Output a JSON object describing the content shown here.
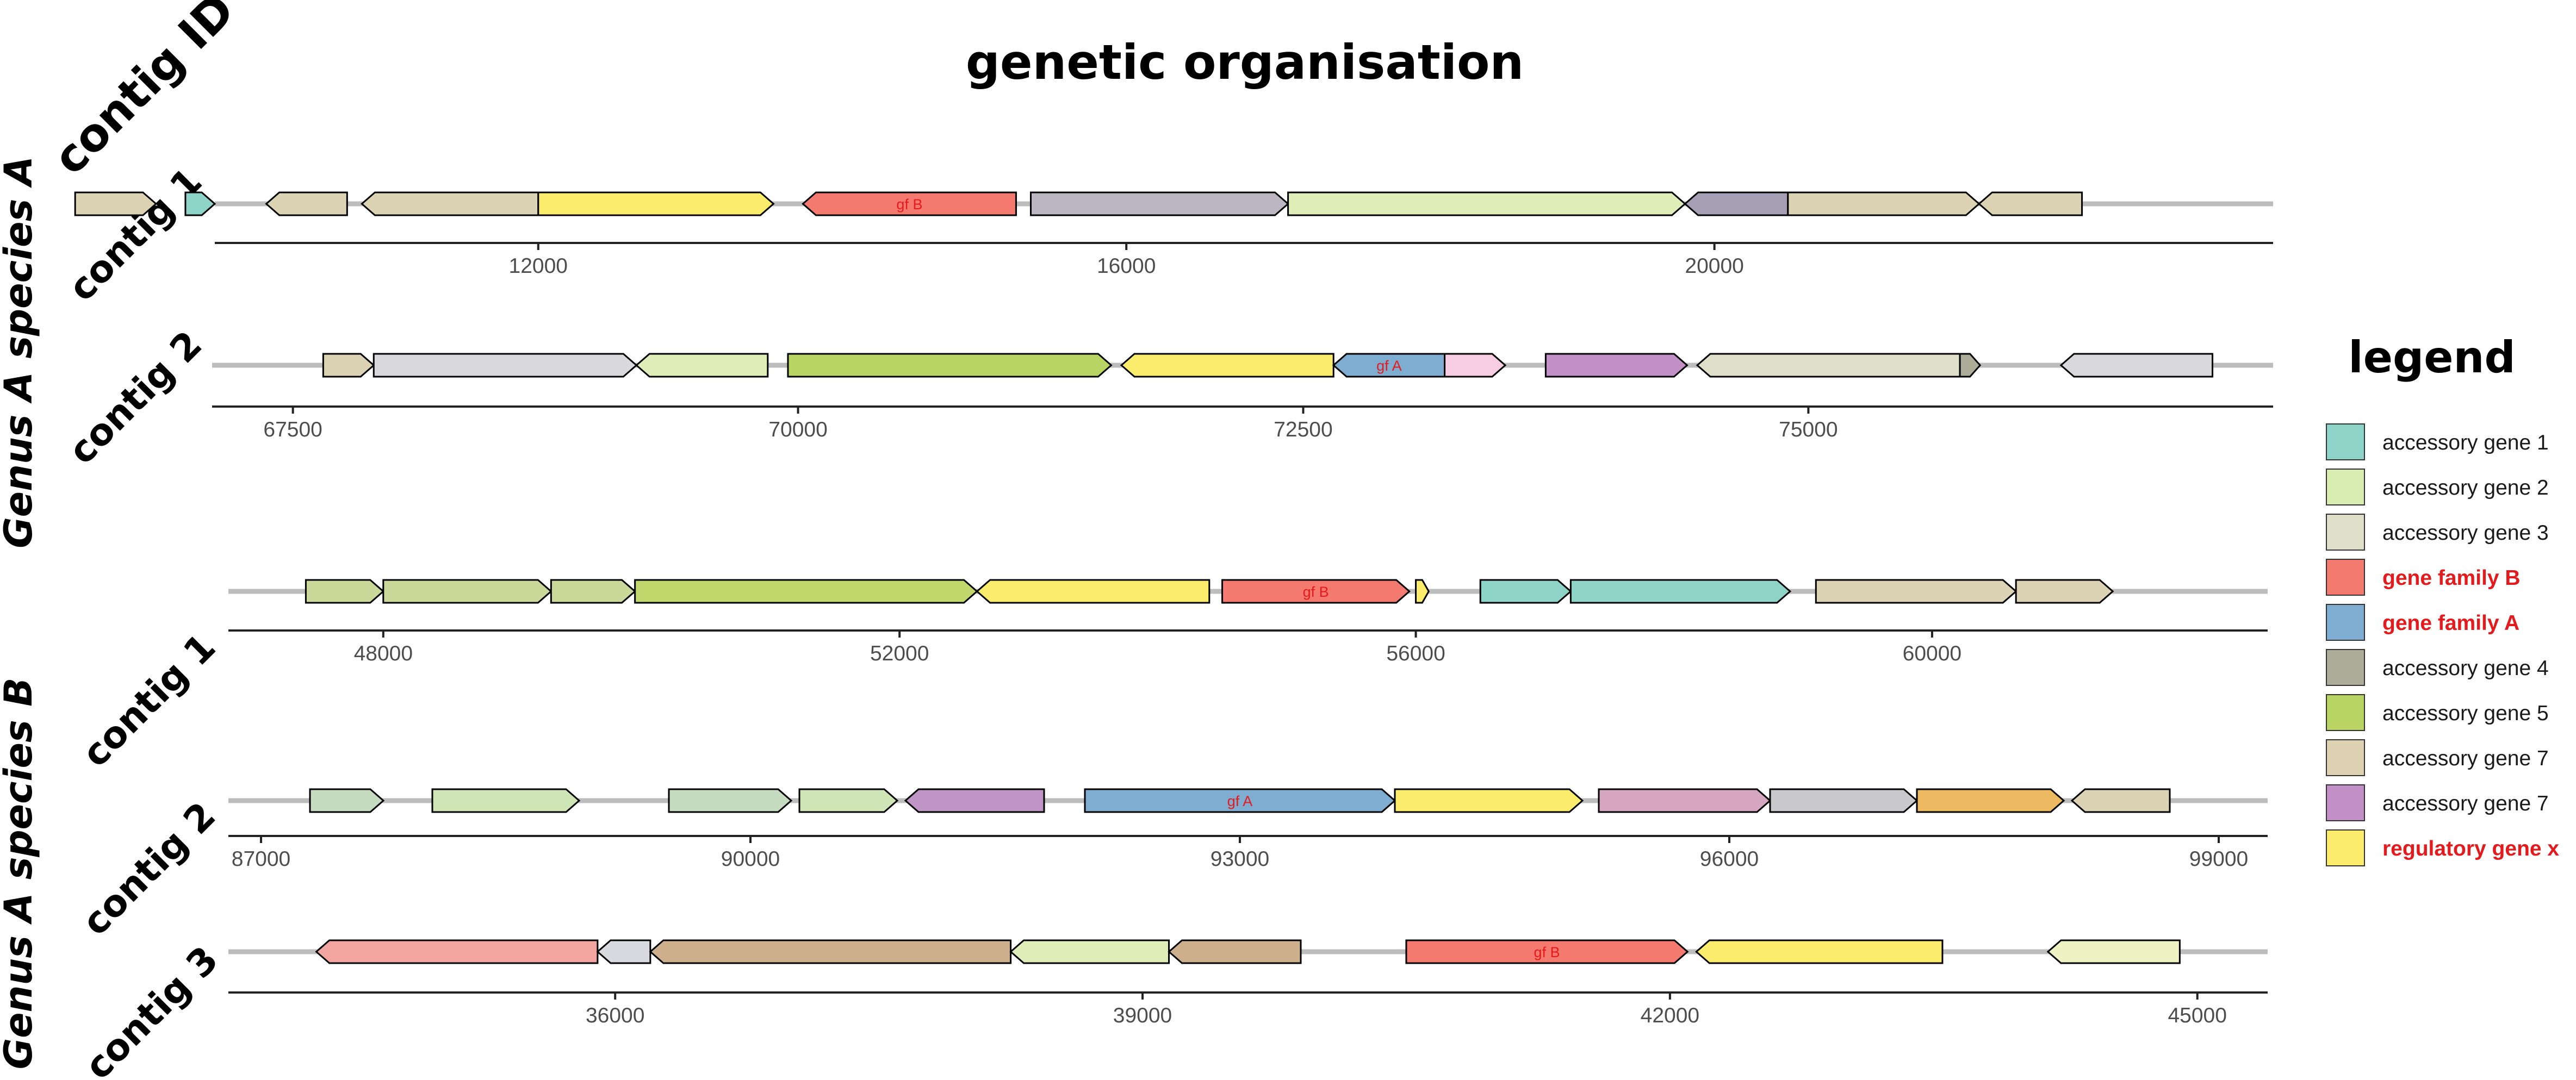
{
  "title": "genetic organisation",
  "y_axis_title": "contig ID",
  "legend": {
    "title": "legend",
    "items": [
      {
        "label": "accessory gene 1",
        "color": "#8dd3c7",
        "highlight": false
      },
      {
        "label": "accessory gene 2",
        "color": "#d9edb2",
        "highlight": false
      },
      {
        "label": "accessory gene 3",
        "color": "#dedfc8",
        "highlight": false
      },
      {
        "label": "gene family B",
        "color": "#f47a70",
        "highlight": true
      },
      {
        "label": "gene family A",
        "color": "#7fadd2",
        "highlight": true
      },
      {
        "label": "accessory gene 4",
        "color": "#acad98",
        "highlight": false
      },
      {
        "label": "accessory gene 5",
        "color": "#b8d563",
        "highlight": false
      },
      {
        "label": "accessory gene 7",
        "color": "#ded2b3",
        "highlight": false
      },
      {
        "label": "accessory gene 7",
        "color": "#c28fc6",
        "highlight": false
      },
      {
        "label": "regulatory gene x",
        "color": "#fbec6b",
        "highlight": true
      }
    ]
  },
  "chart_data": {
    "type": "gene-map",
    "groups": [
      {
        "name": "Genus A species A",
        "contigs": [
          {
            "id": "contig 1",
            "xlim": [
              9800,
              23800
            ],
            "ticks": [
              12000,
              16000,
              20000
            ],
            "genes": [
              {
                "start": 8850,
                "end": 9400,
                "strand": 1,
                "color": "#dcd3b5"
              },
              {
                "start": 9600,
                "end": 9800,
                "strand": 1,
                "color": "#8dd3c7"
              },
              {
                "start": 10150,
                "end": 10700,
                "strand": -1,
                "color": "#dcd3b5"
              },
              {
                "start": 10800,
                "end": 12000,
                "strand": -1,
                "color": "#dcd3b5"
              },
              {
                "start": 12000,
                "end": 13600,
                "strand": 1,
                "color": "#fbec6b"
              },
              {
                "start": 13800,
                "end": 15250,
                "strand": -1,
                "color": "#f47a70",
                "label": "gf B"
              },
              {
                "start": 15350,
                "end": 17100,
                "strand": 1,
                "color": "#bcb6c2"
              },
              {
                "start": 17100,
                "end": 19800,
                "strand": 1,
                "color": "#dfedb8"
              },
              {
                "start": 19800,
                "end": 20500,
                "strand": -1,
                "color": "#a59fb4"
              },
              {
                "start": 20500,
                "end": 21800,
                "strand": 1,
                "color": "#dcd3b5"
              },
              {
                "start": 21800,
                "end": 22500,
                "strand": -1,
                "color": "#dcd3b5"
              }
            ]
          },
          {
            "id": "contig 2",
            "xlim": [
              67100,
              77300
            ],
            "ticks": [
              67500,
              70000,
              72500,
              75000
            ],
            "genes": [
              {
                "start": 67650,
                "end": 67900,
                "strand": 1,
                "color": "#dcd3b5"
              },
              {
                "start": 67900,
                "end": 69200,
                "strand": 1,
                "color": "#d9d9db"
              },
              {
                "start": 69200,
                "end": 69850,
                "strand": -1,
                "color": "#dfedb8"
              },
              {
                "start": 69950,
                "end": 71550,
                "strand": 1,
                "color": "#b8d563"
              },
              {
                "start": 71600,
                "end": 72650,
                "strand": -1,
                "color": "#fbec6b"
              },
              {
                "start": 72650,
                "end": 73200,
                "strand": -1,
                "color": "#7fadd2",
                "label": "gf A"
              },
              {
                "start": 73200,
                "end": 73500,
                "strand": 1,
                "color": "#f6cde1"
              },
              {
                "start": 73700,
                "end": 74400,
                "strand": 1,
                "color": "#c28fc6"
              },
              {
                "start": 74450,
                "end": 75750,
                "strand": -1,
                "color": "#dedfc8"
              },
              {
                "start": 75750,
                "end": 75850,
                "strand": 1,
                "color": "#acad98"
              },
              {
                "start": 76250,
                "end": 77000,
                "strand": -1,
                "color": "#d9d9db"
              }
            ]
          }
        ]
      },
      {
        "name": "Genus A species B",
        "contigs": [
          {
            "id": "contig 1",
            "xlim": [
              46800,
              62600
            ],
            "ticks": [
              48000,
              52000,
              56000,
              60000
            ],
            "genes": [
              {
                "start": 47400,
                "end": 48000,
                "strand": 1,
                "color": "#ccd79a"
              },
              {
                "start": 48000,
                "end": 49300,
                "strand": 1,
                "color": "#ccd79a"
              },
              {
                "start": 49300,
                "end": 49950,
                "strand": 1,
                "color": "#ccd79a"
              },
              {
                "start": 49950,
                "end": 52600,
                "strand": 1,
                "color": "#c1d76b"
              },
              {
                "start": 52600,
                "end": 54400,
                "strand": -1,
                "color": "#fbec6b"
              },
              {
                "start": 54500,
                "end": 55950,
                "strand": 1,
                "color": "#f47a70",
                "label": "gf B"
              },
              {
                "start": 56000,
                "end": 56100,
                "strand": 1,
                "color": "#fbec6b"
              },
              {
                "start": 56500,
                "end": 57200,
                "strand": 1,
                "color": "#8dd3c7"
              },
              {
                "start": 57200,
                "end": 58900,
                "strand": 1,
                "color": "#8dd3c7"
              },
              {
                "start": 59100,
                "end": 60650,
                "strand": 1,
                "color": "#dcd3b5"
              },
              {
                "start": 60650,
                "end": 61400,
                "strand": 1,
                "color": "#dcd3b5"
              }
            ]
          },
          {
            "id": "contig 2",
            "xlim": [
              86800,
              99300
            ],
            "ticks": [
              87000,
              90000,
              93000,
              96000,
              99000
            ],
            "genes": [
              {
                "start": 87300,
                "end": 87750,
                "strand": 1,
                "color": "#c6dcc0"
              },
              {
                "start": 88050,
                "end": 88950,
                "strand": 1,
                "color": "#cfe5b5"
              },
              {
                "start": 89500,
                "end": 90250,
                "strand": 1,
                "color": "#c6dcc0"
              },
              {
                "start": 90300,
                "end": 90900,
                "strand": 1,
                "color": "#cfe5b5"
              },
              {
                "start": 90950,
                "end": 91800,
                "strand": -1,
                "color": "#bf95c6"
              },
              {
                "start": 92050,
                "end": 93950,
                "strand": 1,
                "color": "#7fadd2",
                "label": "gf A"
              },
              {
                "start": 93950,
                "end": 95100,
                "strand": 1,
                "color": "#fbec6b"
              },
              {
                "start": 95200,
                "end": 96250,
                "strand": 1,
                "color": "#d6a5c0"
              },
              {
                "start": 96250,
                "end": 97150,
                "strand": 1,
                "color": "#c9c9cc"
              },
              {
                "start": 97150,
                "end": 98050,
                "strand": 1,
                "color": "#edba62"
              },
              {
                "start": 98100,
                "end": 98700,
                "strand": -1,
                "color": "#dcd3b5"
              }
            ]
          },
          {
            "id": "contig 3",
            "xlim": [
              33800,
              45400
            ],
            "ticks": [
              36000,
              39000,
              42000,
              45000
            ],
            "genes": [
              {
                "start": 34300,
                "end": 35900,
                "strand": -1,
                "color": "#f2a5a1"
              },
              {
                "start": 35900,
                "end": 36200,
                "strand": -1,
                "color": "#d9d9e0"
              },
              {
                "start": 36200,
                "end": 38250,
                "strand": -1,
                "color": "#cdb08b"
              },
              {
                "start": 38250,
                "end": 39150,
                "strand": -1,
                "color": "#dfedb8"
              },
              {
                "start": 39150,
                "end": 39900,
                "strand": -1,
                "color": "#cdb08b"
              },
              {
                "start": 40500,
                "end": 42100,
                "strand": 1,
                "color": "#f47a70",
                "label": "gf B"
              },
              {
                "start": 42150,
                "end": 43550,
                "strand": -1,
                "color": "#fbec6b"
              },
              {
                "start": 44150,
                "end": 44900,
                "strand": -1,
                "color": "#eff3c3"
              }
            ]
          }
        ]
      }
    ]
  }
}
